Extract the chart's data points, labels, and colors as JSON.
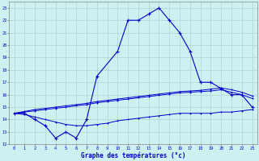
{
  "xlabel": "Graphe des températures (°c)",
  "background_color": "#cff0f0",
  "grid_color": "#aacccc",
  "line_color": "#0000cc",
  "xlim": [
    -0.5,
    23.5
  ],
  "ylim": [
    12,
    23.5
  ],
  "xticks": [
    0,
    1,
    2,
    3,
    4,
    5,
    6,
    7,
    8,
    9,
    10,
    11,
    12,
    13,
    14,
    15,
    16,
    17,
    18,
    19,
    20,
    21,
    22,
    23
  ],
  "yticks": [
    12,
    13,
    14,
    15,
    16,
    17,
    18,
    19,
    20,
    21,
    22,
    23
  ],
  "hours": [
    0,
    1,
    2,
    3,
    4,
    5,
    6,
    7,
    8,
    9,
    10,
    11,
    12,
    13,
    14,
    15,
    16,
    17,
    18,
    19,
    20,
    21,
    22,
    23
  ],
  "temp_actual": [
    14.5,
    14.5,
    14.0,
    13.5,
    12.5,
    13.0,
    12.5,
    14.0,
    17.5,
    null,
    19.5,
    22.0,
    22.0,
    22.5,
    23.0,
    22.0,
    21.0,
    19.5,
    17.0,
    17.0,
    16.5,
    16.0,
    16.0,
    15.0
  ],
  "temp_min": [
    14.5,
    14.4,
    14.2,
    14.0,
    13.8,
    13.6,
    13.5,
    13.5,
    13.6,
    13.7,
    13.9,
    14.0,
    14.1,
    14.2,
    14.3,
    14.4,
    14.5,
    14.5,
    14.5,
    14.5,
    14.6,
    14.6,
    14.7,
    14.8
  ],
  "temp_avg1": [
    14.5,
    14.6,
    14.7,
    14.8,
    14.9,
    15.0,
    15.1,
    15.2,
    15.35,
    15.45,
    15.55,
    15.65,
    15.75,
    15.85,
    15.95,
    16.05,
    16.15,
    16.2,
    16.25,
    16.3,
    16.4,
    16.2,
    16.0,
    15.7
  ],
  "temp_avg2": [
    14.5,
    14.65,
    14.8,
    14.9,
    15.0,
    15.1,
    15.2,
    15.3,
    15.45,
    15.55,
    15.65,
    15.75,
    15.85,
    15.95,
    16.05,
    16.15,
    16.25,
    16.3,
    16.35,
    16.45,
    16.55,
    16.4,
    16.2,
    15.9
  ]
}
